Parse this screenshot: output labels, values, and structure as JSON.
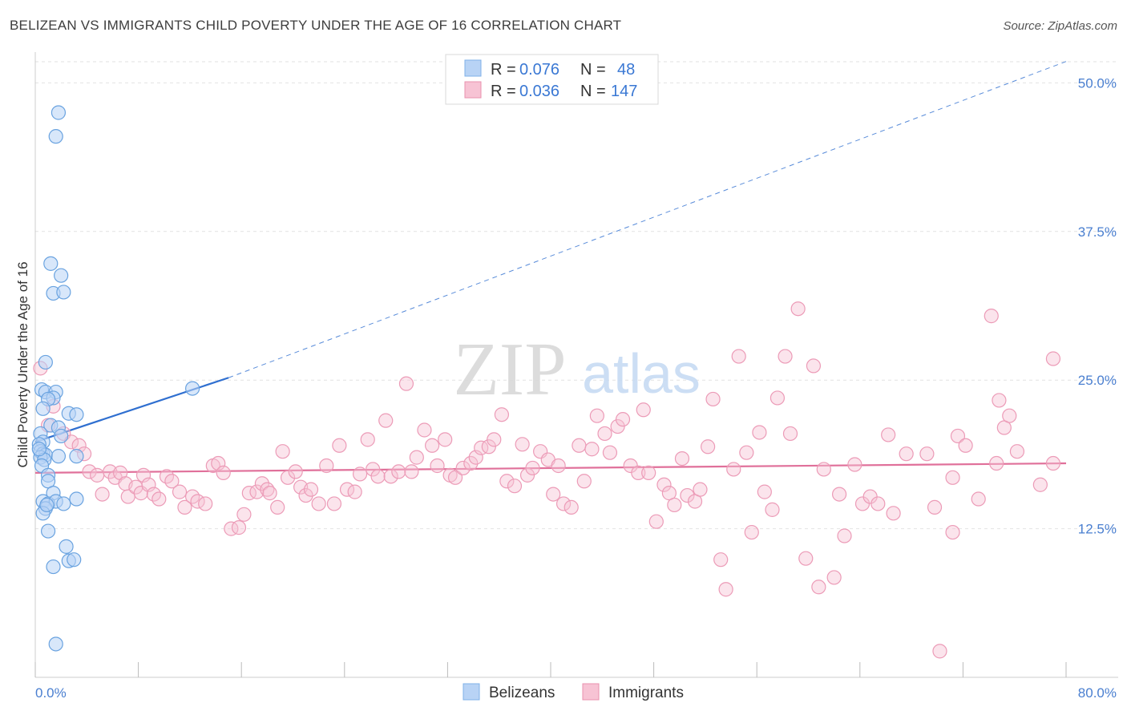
{
  "title": "BELIZEAN VS IMMIGRANTS CHILD POVERTY UNDER THE AGE OF 16 CORRELATION CHART",
  "source": "Source: ZipAtlas.com",
  "watermark": {
    "zip": "ZIP",
    "atlas": "atlas"
  },
  "chart_data": {
    "type": "scatter",
    "ylabel": "Child Poverty Under the Age of 16",
    "x_tick_labels": [
      "0.0%",
      "80.0%"
    ],
    "y_tick_labels": [
      "12.5%",
      "25.0%",
      "37.5%",
      "50.0%"
    ],
    "xlim": [
      0,
      80
    ],
    "ylim": [
      0,
      52
    ],
    "y_ticks": [
      12.5,
      25.0,
      37.5,
      50.0
    ],
    "x_ticks_minor": [
      0,
      8,
      16,
      24,
      32,
      40,
      48,
      56,
      64,
      72,
      80
    ],
    "legend": {
      "r_label": "R =",
      "n_label": "N =",
      "entries": [
        {
          "name": "Belizeans",
          "r": "0.076",
          "n": "48",
          "color": "#7fb0e8",
          "fill": "#b8d3f5"
        },
        {
          "name": "Immigrants",
          "r": "0.036",
          "n": "147",
          "color": "#e890ae",
          "fill": "#f7c3d4"
        }
      ]
    },
    "series": [
      {
        "name": "Belizeans",
        "color": "#6aa3e0",
        "trend": {
          "x0": 0,
          "y0": 19.8,
          "x1": 15,
          "y1": 25.2,
          "dash_to_x": 80,
          "dash_to_y": 51.8,
          "color": "#2f6fd0"
        },
        "points": [
          [
            1.8,
            47.5
          ],
          [
            1.6,
            45.5
          ],
          [
            1.2,
            34.8
          ],
          [
            2.0,
            33.8
          ],
          [
            1.4,
            32.3
          ],
          [
            2.2,
            32.4
          ],
          [
            0.8,
            26.5
          ],
          [
            0.5,
            24.2
          ],
          [
            0.8,
            24.0
          ],
          [
            1.6,
            24.0
          ],
          [
            1.4,
            23.5
          ],
          [
            1.0,
            23.4
          ],
          [
            2.6,
            22.2
          ],
          [
            3.2,
            22.1
          ],
          [
            0.6,
            22.6
          ],
          [
            12.2,
            24.3
          ],
          [
            1.2,
            21.2
          ],
          [
            1.8,
            21.0
          ],
          [
            0.4,
            20.5
          ],
          [
            2.0,
            20.3
          ],
          [
            0.6,
            19.8
          ],
          [
            0.3,
            19.6
          ],
          [
            0.4,
            19.0
          ],
          [
            0.6,
            18.8
          ],
          [
            0.8,
            18.7
          ],
          [
            0.4,
            18.5
          ],
          [
            0.7,
            18.3
          ],
          [
            1.8,
            18.6
          ],
          [
            3.2,
            18.6
          ],
          [
            0.5,
            17.8
          ],
          [
            1.0,
            17.0
          ],
          [
            1.0,
            16.5
          ],
          [
            1.4,
            15.5
          ],
          [
            0.6,
            14.8
          ],
          [
            1.0,
            14.6
          ],
          [
            1.6,
            14.8
          ],
          [
            3.2,
            15.0
          ],
          [
            2.2,
            14.6
          ],
          [
            0.8,
            14.2
          ],
          [
            0.6,
            13.8
          ],
          [
            1.0,
            12.3
          ],
          [
            2.4,
            11.0
          ],
          [
            2.6,
            9.8
          ],
          [
            3.0,
            9.9
          ],
          [
            1.4,
            9.3
          ],
          [
            1.6,
            2.8
          ],
          [
            0.3,
            19.2
          ],
          [
            0.9,
            14.5
          ]
        ]
      },
      {
        "name": "Immigrants",
        "color": "#ec9bb7",
        "trend": {
          "x0": 0,
          "y0": 17.2,
          "x1": 80,
          "y1": 18.0,
          "color": "#e0709a"
        },
        "points": [
          [
            0.4,
            26.0
          ],
          [
            1.4,
            22.8
          ],
          [
            1.0,
            21.2
          ],
          [
            2.2,
            20.5
          ],
          [
            2.8,
            19.8
          ],
          [
            3.4,
            19.5
          ],
          [
            3.8,
            18.8
          ],
          [
            4.2,
            17.3
          ],
          [
            4.8,
            17.0
          ],
          [
            5.2,
            15.4
          ],
          [
            5.8,
            17.3
          ],
          [
            6.2,
            16.8
          ],
          [
            6.6,
            17.2
          ],
          [
            7.0,
            16.3
          ],
          [
            7.2,
            15.2
          ],
          [
            7.8,
            16.0
          ],
          [
            8.2,
            15.5
          ],
          [
            8.4,
            17.0
          ],
          [
            8.8,
            16.2
          ],
          [
            9.2,
            15.4
          ],
          [
            9.6,
            15.0
          ],
          [
            10.2,
            16.9
          ],
          [
            10.6,
            16.5
          ],
          [
            11.2,
            15.6
          ],
          [
            11.6,
            14.3
          ],
          [
            12.2,
            15.2
          ],
          [
            12.6,
            14.8
          ],
          [
            13.2,
            14.6
          ],
          [
            13.8,
            17.8
          ],
          [
            14.2,
            18.0
          ],
          [
            14.6,
            17.2
          ],
          [
            15.2,
            12.5
          ],
          [
            15.8,
            12.6
          ],
          [
            16.2,
            13.7
          ],
          [
            16.6,
            15.5
          ],
          [
            17.2,
            15.6
          ],
          [
            17.6,
            16.3
          ],
          [
            18.0,
            15.8
          ],
          [
            18.2,
            15.5
          ],
          [
            18.8,
            14.3
          ],
          [
            19.2,
            19.0
          ],
          [
            19.6,
            16.8
          ],
          [
            20.2,
            17.3
          ],
          [
            20.6,
            16.0
          ],
          [
            21.0,
            15.3
          ],
          [
            21.4,
            15.8
          ],
          [
            22.0,
            14.6
          ],
          [
            22.6,
            17.8
          ],
          [
            23.2,
            14.6
          ],
          [
            23.6,
            19.5
          ],
          [
            24.2,
            15.8
          ],
          [
            24.8,
            15.6
          ],
          [
            25.2,
            17.1
          ],
          [
            25.8,
            20.0
          ],
          [
            26.2,
            17.5
          ],
          [
            26.6,
            16.9
          ],
          [
            27.2,
            21.6
          ],
          [
            27.6,
            16.9
          ],
          [
            28.2,
            17.3
          ],
          [
            28.8,
            24.7
          ],
          [
            29.2,
            17.3
          ],
          [
            29.6,
            18.5
          ],
          [
            30.2,
            20.8
          ],
          [
            30.8,
            19.5
          ],
          [
            31.2,
            17.8
          ],
          [
            31.8,
            20.0
          ],
          [
            32.2,
            17.0
          ],
          [
            32.6,
            16.8
          ],
          [
            33.2,
            17.6
          ],
          [
            33.8,
            18.0
          ],
          [
            34.2,
            18.5
          ],
          [
            34.6,
            19.3
          ],
          [
            35.2,
            19.4
          ],
          [
            35.6,
            20.0
          ],
          [
            36.2,
            22.1
          ],
          [
            36.6,
            16.5
          ],
          [
            37.2,
            16.1
          ],
          [
            37.8,
            19.6
          ],
          [
            38.2,
            17.0
          ],
          [
            38.6,
            17.6
          ],
          [
            39.2,
            19.0
          ],
          [
            39.8,
            18.3
          ],
          [
            40.2,
            15.4
          ],
          [
            40.6,
            17.8
          ],
          [
            41.0,
            14.6
          ],
          [
            41.6,
            14.3
          ],
          [
            42.2,
            19.5
          ],
          [
            42.6,
            16.5
          ],
          [
            43.2,
            19.2
          ],
          [
            43.6,
            22.0
          ],
          [
            44.2,
            20.5
          ],
          [
            44.6,
            18.9
          ],
          [
            45.2,
            21.1
          ],
          [
            45.6,
            21.7
          ],
          [
            46.2,
            17.8
          ],
          [
            46.8,
            17.2
          ],
          [
            47.2,
            22.5
          ],
          [
            47.6,
            17.2
          ],
          [
            48.2,
            13.1
          ],
          [
            48.8,
            16.2
          ],
          [
            49.2,
            15.5
          ],
          [
            49.6,
            14.5
          ],
          [
            50.2,
            18.4
          ],
          [
            50.6,
            15.3
          ],
          [
            51.2,
            14.8
          ],
          [
            51.6,
            15.8
          ],
          [
            52.2,
            19.4
          ],
          [
            52.6,
            23.4
          ],
          [
            53.2,
            9.9
          ],
          [
            53.6,
            7.4
          ],
          [
            54.2,
            17.5
          ],
          [
            54.6,
            27.0
          ],
          [
            55.2,
            18.9
          ],
          [
            55.6,
            12.2
          ],
          [
            56.2,
            20.6
          ],
          [
            56.6,
            15.6
          ],
          [
            57.2,
            14.1
          ],
          [
            57.6,
            23.5
          ],
          [
            58.2,
            27.0
          ],
          [
            58.6,
            20.5
          ],
          [
            59.2,
            31.0
          ],
          [
            59.8,
            10.0
          ],
          [
            60.4,
            26.2
          ],
          [
            60.8,
            7.6
          ],
          [
            61.2,
            17.5
          ],
          [
            62.0,
            8.4
          ],
          [
            62.4,
            15.4
          ],
          [
            62.8,
            11.9
          ],
          [
            63.6,
            17.9
          ],
          [
            64.2,
            14.6
          ],
          [
            64.8,
            15.2
          ],
          [
            65.4,
            14.6
          ],
          [
            66.2,
            20.4
          ],
          [
            66.6,
            13.8
          ],
          [
            67.6,
            18.8
          ],
          [
            69.2,
            18.8
          ],
          [
            69.8,
            14.3
          ],
          [
            70.2,
            2.2
          ],
          [
            71.2,
            12.2
          ],
          [
            71.6,
            20.3
          ],
          [
            72.2,
            19.5
          ],
          [
            73.2,
            15.0
          ],
          [
            74.2,
            30.4
          ],
          [
            74.6,
            18.0
          ],
          [
            74.8,
            23.3
          ],
          [
            75.2,
            21.0
          ],
          [
            75.6,
            22.0
          ],
          [
            76.2,
            19.0
          ],
          [
            79.0,
            26.8
          ],
          [
            71.2,
            16.8
          ],
          [
            79.0,
            18.0
          ],
          [
            78.0,
            16.2
          ]
        ]
      }
    ]
  }
}
